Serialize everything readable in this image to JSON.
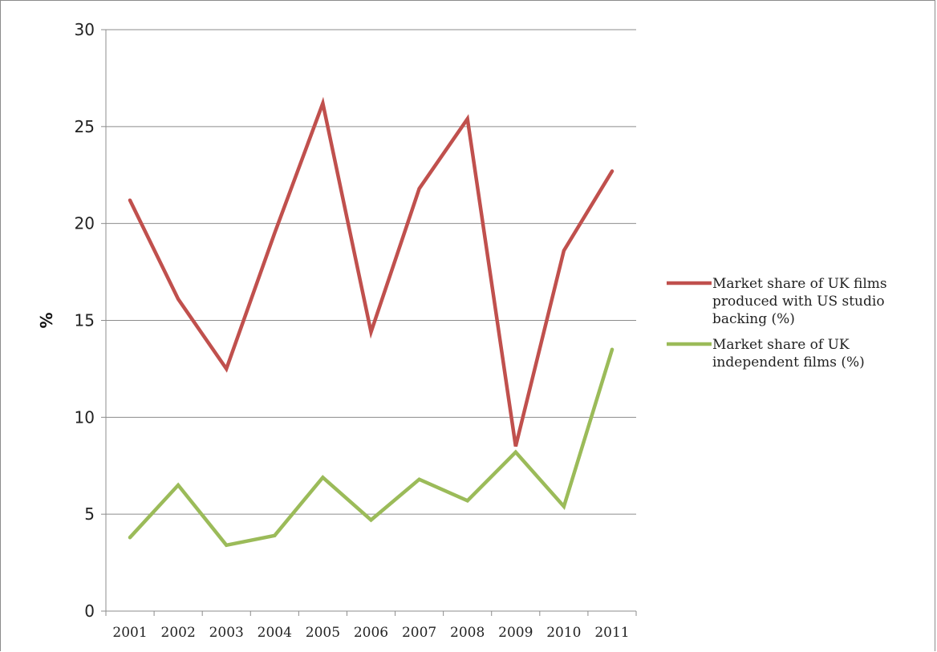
{
  "chart_data": {
    "type": "line",
    "title": "",
    "xlabel": "",
    "ylabel": "%",
    "ylim": [
      0,
      30
    ],
    "yticks": [
      0,
      5,
      10,
      15,
      20,
      25,
      30
    ],
    "grid": true,
    "legend_position": "right",
    "categories": [
      "2001",
      "2002",
      "2003",
      "2004",
      "2005",
      "2006",
      "2007",
      "2008",
      "2009",
      "2010",
      "2011"
    ],
    "series": [
      {
        "name": "Market share of UK films produced with US studio backing (%)",
        "legend_lines": [
          "Market share of UK films",
          "produced with US studio",
          "backing (%)"
        ],
        "color": "#c0504d",
        "values": [
          21.2,
          16.1,
          12.5,
          19.5,
          26.2,
          14.4,
          21.8,
          25.4,
          8.5,
          18.6,
          22.7
        ]
      },
      {
        "name": "Market share of UK independent films (%)",
        "legend_lines": [
          "Market share of UK",
          "independent films (%)"
        ],
        "color": "#9bbb59",
        "values": [
          3.8,
          6.5,
          3.4,
          3.9,
          6.9,
          4.7,
          6.8,
          5.7,
          8.2,
          5.4,
          13.5
        ]
      }
    ]
  }
}
